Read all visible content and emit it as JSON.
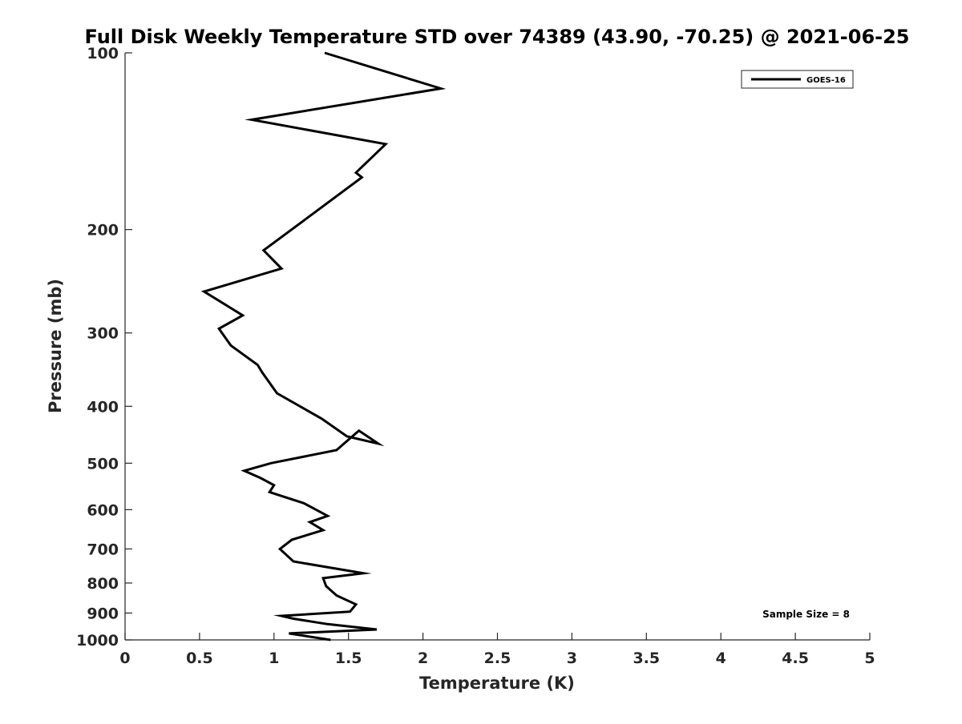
{
  "chart_data": {
    "type": "line",
    "title": "Full Disk Weekly Temperature STD over 74389 (43.90, -70.25) @ 2021-06-25",
    "xlabel": "Temperature (K)",
    "ylabel": "Pressure (mb)",
    "xlim": [
      0,
      5
    ],
    "ylim": [
      1000,
      100
    ],
    "y_scale": "log",
    "y_reversed": true,
    "x_ticks": [
      0,
      0.5,
      1,
      1.5,
      2,
      2.5,
      3,
      3.5,
      4,
      4.5,
      5
    ],
    "x_tick_labels": [
      "0",
      "0.5",
      "1",
      "1.5",
      "2",
      "2.5",
      "3",
      "3.5",
      "4",
      "4.5",
      "5"
    ],
    "y_ticks": [
      100,
      200,
      300,
      400,
      500,
      600,
      700,
      800,
      900,
      1000
    ],
    "y_tick_labels": [
      "100",
      "200",
      "300",
      "400",
      "500",
      "600",
      "700",
      "800",
      "900",
      "1000"
    ],
    "grid": false,
    "legend_position": "top-right",
    "annotation": "Sample Size = 8",
    "series": [
      {
        "name": "GOES-16",
        "color": "#000000",
        "x": [
          1.34,
          2.12,
          0.85,
          1.75,
          1.55,
          1.59,
          0.93,
          1.05,
          0.53,
          0.79,
          0.63,
          0.71,
          0.89,
          0.92,
          1.02,
          1.32,
          1.49,
          1.7,
          1.57,
          1.42,
          0.98,
          0.8,
          0.91,
          1.0,
          0.97,
          1.2,
          1.36,
          1.24,
          1.33,
          1.12,
          1.04,
          1.13,
          1.6,
          1.33,
          1.35,
          1.42,
          1.55,
          1.51,
          1.05,
          1.13,
          1.36,
          1.69,
          1.1,
          1.38
        ],
        "y": [
          100,
          115,
          130,
          143,
          160,
          163,
          217,
          233,
          255,
          280,
          295,
          315,
          340,
          350,
          380,
          420,
          450,
          463,
          440,
          475,
          500,
          515,
          530,
          545,
          560,
          585,
          615,
          630,
          650,
          675,
          700,
          735,
          770,
          785,
          810,
          840,
          870,
          895,
          910,
          920,
          940,
          960,
          975,
          1000
        ]
      }
    ]
  }
}
